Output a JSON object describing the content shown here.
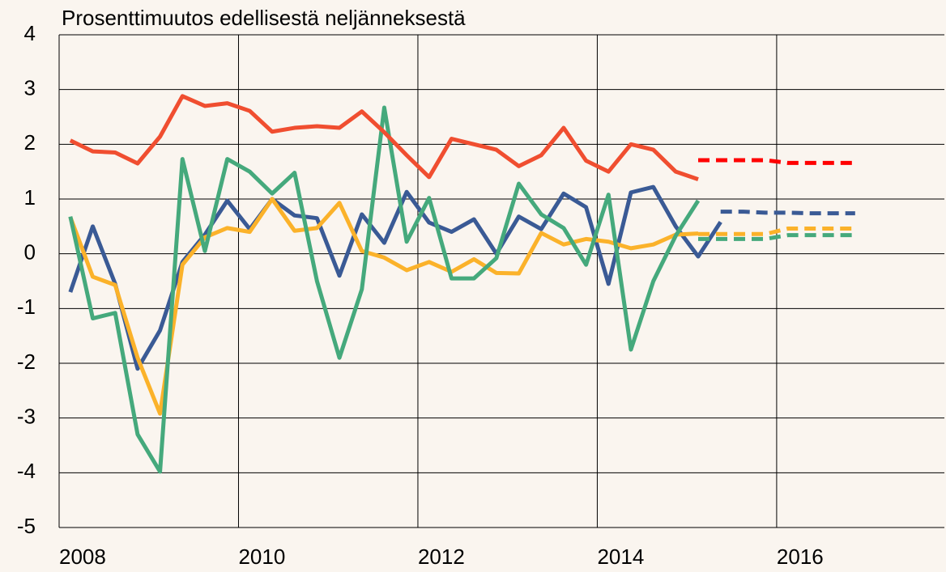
{
  "chart_data": {
    "type": "line",
    "title": "Prosenttimuutos edellisestä neljänneksestä",
    "x": [
      2008.125,
      2008.375,
      2008.625,
      2008.875,
      2009.125,
      2009.375,
      2009.625,
      2009.875,
      2010.125,
      2010.375,
      2010.625,
      2010.875,
      2011.125,
      2011.375,
      2011.625,
      2011.875,
      2012.125,
      2012.375,
      2012.625,
      2012.875,
      2013.125,
      2013.375,
      2013.625,
      2013.875,
      2014.125,
      2014.375,
      2014.625,
      2014.875,
      2015.125,
      2015.375,
      2015.625,
      2015.875,
      2016.125,
      2016.375,
      2016.625,
      2016.875
    ],
    "series": [
      {
        "color": "#3a5a95",
        "dashed": false,
        "values": [
          -0.7,
          0.5,
          -0.55,
          -2.1,
          -1.4,
          -0.15,
          0.35,
          0.97,
          0.45,
          1.0,
          0.7,
          0.65,
          -0.4,
          0.72,
          0.2,
          1.13,
          0.57,
          0.4,
          0.63,
          0.0,
          0.68,
          0.45,
          1.1,
          0.85,
          -0.55,
          1.12,
          1.22,
          0.5,
          -0.05,
          0.58,
          null,
          null,
          null,
          null,
          null,
          null
        ]
      },
      {
        "color": "#fbb22a",
        "dashed": false,
        "values": [
          0.67,
          -0.42,
          -0.57,
          -1.9,
          -2.92,
          -0.2,
          0.3,
          0.47,
          0.4,
          1.0,
          0.42,
          0.47,
          0.93,
          0.05,
          -0.07,
          -0.3,
          -0.15,
          -0.33,
          -0.1,
          -0.35,
          -0.36,
          0.38,
          0.17,
          0.27,
          0.22,
          0.1,
          0.17,
          0.35,
          0.37,
          null,
          null,
          null,
          null,
          null,
          null,
          null
        ]
      },
      {
        "color": "#45a97c",
        "dashed": false,
        "values": [
          0.68,
          -1.18,
          -1.08,
          -3.3,
          -3.98,
          1.73,
          0.05,
          1.73,
          1.5,
          1.1,
          1.48,
          -0.5,
          -1.9,
          -0.65,
          2.67,
          0.22,
          1.02,
          -0.45,
          -0.45,
          -0.08,
          1.28,
          0.72,
          0.47,
          -0.2,
          1.08,
          -1.75,
          -0.5,
          0.33,
          0.97,
          null,
          null,
          null,
          null,
          null,
          null,
          null
        ]
      },
      {
        "color": "#f04e30",
        "dashed": false,
        "values": [
          2.07,
          1.87,
          1.85,
          1.65,
          2.14,
          2.88,
          2.7,
          2.75,
          2.61,
          2.23,
          2.3,
          2.33,
          2.3,
          2.6,
          2.22,
          1.8,
          1.4,
          2.1,
          2.0,
          1.9,
          1.6,
          1.8,
          2.3,
          1.7,
          1.5,
          2.0,
          1.9,
          1.5,
          1.36,
          null,
          null,
          null,
          null,
          null,
          null,
          null
        ]
      },
      {
        "color": "#ff0000",
        "dashed": true,
        "values": [
          null,
          null,
          null,
          null,
          null,
          null,
          null,
          null,
          null,
          null,
          null,
          null,
          null,
          null,
          null,
          null,
          null,
          null,
          null,
          null,
          null,
          null,
          null,
          null,
          null,
          null,
          null,
          null,
          1.71,
          1.71,
          1.71,
          1.71,
          1.66,
          1.66,
          1.66,
          1.66
        ]
      },
      {
        "color": "#3a5a95",
        "dashed": true,
        "values": [
          null,
          null,
          null,
          null,
          null,
          null,
          null,
          null,
          null,
          null,
          null,
          null,
          null,
          null,
          null,
          null,
          null,
          null,
          null,
          null,
          null,
          null,
          null,
          null,
          null,
          null,
          null,
          null,
          null,
          0.77,
          0.77,
          0.75,
          0.75,
          0.74,
          0.74,
          0.74
        ]
      },
      {
        "color": "#fbb22a",
        "dashed": true,
        "values": [
          null,
          null,
          null,
          null,
          null,
          null,
          null,
          null,
          null,
          null,
          null,
          null,
          null,
          null,
          null,
          null,
          null,
          null,
          null,
          null,
          null,
          null,
          null,
          null,
          null,
          null,
          null,
          null,
          0.36,
          0.36,
          0.36,
          0.36,
          0.46,
          0.46,
          0.46,
          0.46
        ]
      },
      {
        "color": "#45a97c",
        "dashed": true,
        "values": [
          null,
          null,
          null,
          null,
          null,
          null,
          null,
          null,
          null,
          null,
          null,
          null,
          null,
          null,
          null,
          null,
          null,
          null,
          null,
          null,
          null,
          null,
          null,
          null,
          null,
          null,
          null,
          null,
          0.27,
          0.27,
          0.27,
          0.27,
          0.34,
          0.34,
          0.34,
          0.34
        ]
      }
    ],
    "xlim": [
      2008,
      2017.87
    ],
    "xticks": [
      2008,
      2010,
      2012,
      2014,
      2016
    ],
    "ylim": [
      -5,
      4
    ],
    "yticks": [
      -5,
      -4,
      -3,
      -2,
      -1,
      0,
      1,
      2,
      3,
      4
    ],
    "grid": true
  }
}
